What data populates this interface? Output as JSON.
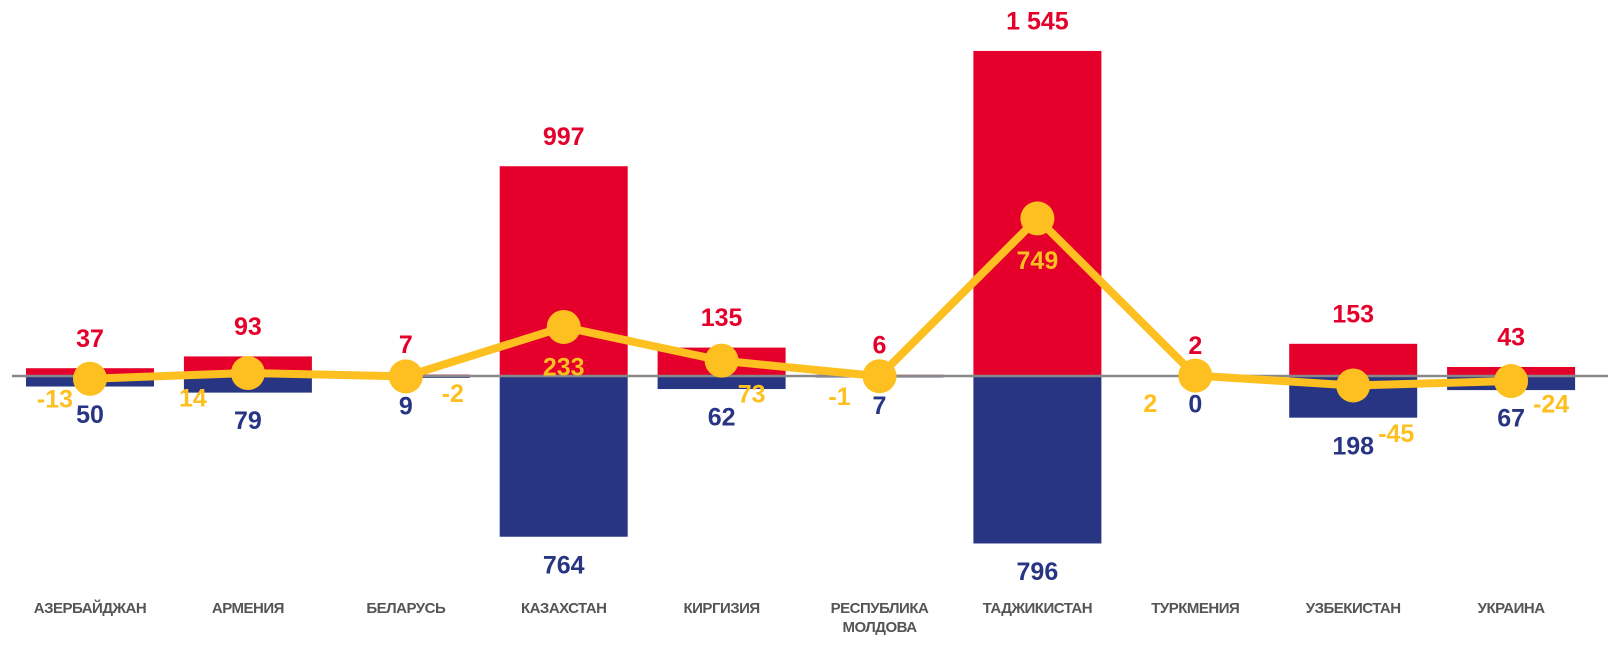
{
  "chart_data": {
    "type": "bar-line",
    "categories": [
      "АЗЕРБАЙДЖАН",
      "АРМЕНИЯ",
      "БЕЛАРУСЬ",
      "КАЗАХСТАН",
      "КИРГИЗИЯ",
      "РЕСПУБЛИКА МОЛДОВА",
      "ТАДЖИКИСТАН",
      "ТУРКМЕНИЯ",
      "УЗБЕКИСТАН",
      "УКРАИНА"
    ],
    "series": [
      {
        "type": "bar",
        "direction": "up",
        "color": "#e4002b",
        "values": [
          37,
          93,
          7,
          997,
          135,
          6,
          1545,
          2,
          153,
          43
        ],
        "value_labels": [
          "37",
          "93",
          "7",
          "997",
          "135",
          "6",
          "1 545",
          "2",
          "153",
          "43"
        ]
      },
      {
        "type": "bar",
        "direction": "down",
        "color": "#283583",
        "values": [
          50,
          79,
          9,
          764,
          62,
          7,
          796,
          0,
          198,
          67
        ]
      },
      {
        "type": "line",
        "color": "#fdc020",
        "values": [
          -13,
          14,
          -2,
          233,
          73,
          -1,
          749,
          2,
          -45,
          -24
        ]
      }
    ]
  }
}
